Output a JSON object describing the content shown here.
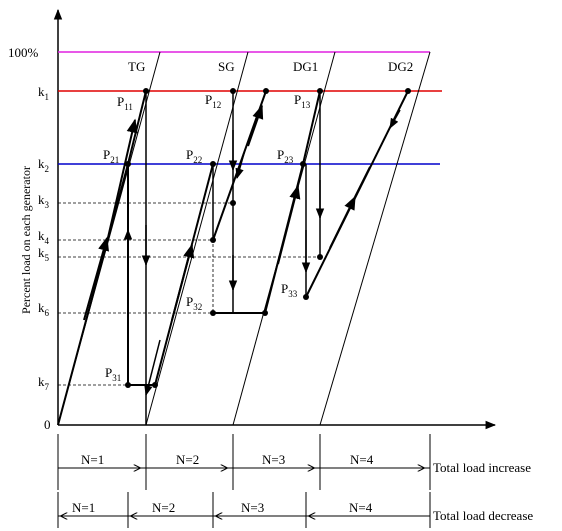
{
  "axes": {
    "y_label": "Percent load on each generator",
    "origin": "0",
    "y_ticks": {
      "hundred": "100%",
      "k1": [
        "k",
        "1"
      ],
      "k2": [
        "k",
        "2"
      ],
      "k3": [
        "k",
        "3"
      ],
      "k4": [
        "k",
        "4"
      ],
      "k5": [
        "k",
        "5"
      ],
      "k6": [
        "k",
        "6"
      ],
      "k7": [
        "k",
        "7"
      ]
    }
  },
  "generators": [
    "TG",
    "SG",
    "DG1",
    "DG2"
  ],
  "points": {
    "P11": [
      "P",
      "11"
    ],
    "P12": [
      "P",
      "12"
    ],
    "P13": [
      "P",
      "13"
    ],
    "P21": [
      "P",
      "21"
    ],
    "P22": [
      "P",
      "22"
    ],
    "P23": [
      "P",
      "23"
    ],
    "P31": [
      "P",
      "31"
    ],
    "P32": [
      "P",
      "32"
    ],
    "P33": [
      "P",
      "33"
    ]
  },
  "increase": {
    "segments": [
      "N=1",
      "N=2",
      "N=3",
      "N=4"
    ],
    "label": "Total load increase"
  },
  "decrease": {
    "segments": [
      "N=1",
      "N=2",
      "N=3",
      "N=4"
    ],
    "label": "Total load decrease"
  },
  "colors": {
    "hundred_line": "#e020e0",
    "k1_line": "#e00000",
    "k2_line": "#0000cc"
  }
}
